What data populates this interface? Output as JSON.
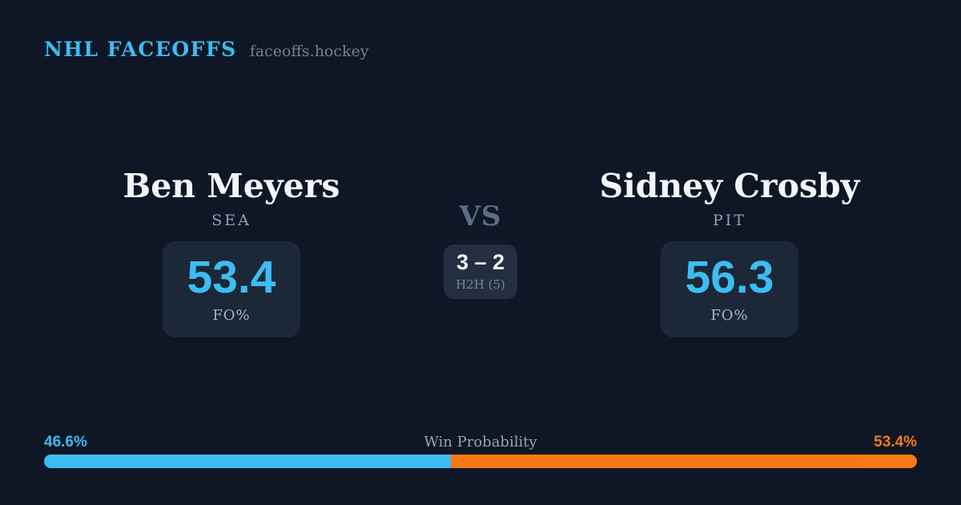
{
  "header": {
    "brand": "NHL FACEOFFS",
    "site": "faceoffs.hockey"
  },
  "matchup": {
    "vs_label": "VS",
    "h2h": {
      "score": "3 – 2",
      "label": "H2H (5)"
    },
    "players": [
      {
        "name": "Ben Meyers",
        "team": "SEA",
        "stat_value": "53.4",
        "stat_label": "FO%"
      },
      {
        "name": "Sidney Crosby",
        "team": "PIT",
        "stat_value": "56.3",
        "stat_label": "FO%"
      }
    ]
  },
  "win_probability": {
    "title": "Win Probability",
    "left_pct_label": "46.6%",
    "right_pct_label": "53.4%",
    "left_value": 46.6,
    "right_value": 53.4
  },
  "colors": {
    "background": "#0f1726",
    "card": "#1c2737",
    "center_card": "#232e40",
    "accent_blue": "#3cbdf2",
    "accent_orange": "#f87a16",
    "name_text": "#f2f5f9",
    "muted_text": "#94a0b2",
    "vs_text": "#5d6d87"
  }
}
